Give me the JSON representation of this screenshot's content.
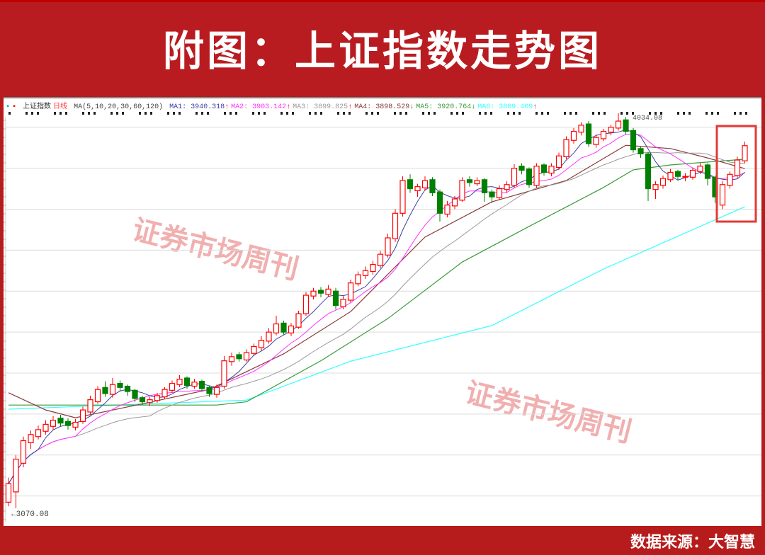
{
  "header": {
    "title": "附图：上证指数走势图"
  },
  "footer": {
    "source": "数据来源：大智慧"
  },
  "watermarks": [
    "证券市场周刊",
    "证券市场周刊"
  ],
  "colors": {
    "background": "#b91c20",
    "up": "#ff0000",
    "down": "#008000",
    "highlight_box": "#e53935"
  },
  "chart_data": {
    "type": "candlestick",
    "title": "",
    "instrument": "上证指数",
    "period": "日线",
    "ma_label": "MA(5,10,20,30,60,120)",
    "legend": [
      {
        "name": "MA1",
        "value": "3940.318",
        "arrow": "↑",
        "color": "#3f3f9f"
      },
      {
        "name": "MA2",
        "value": "3903.142",
        "arrow": "↑",
        "color": "#ff33ff"
      },
      {
        "name": "MA3",
        "value": "3899.825",
        "arrow": "↑",
        "color": "#999999"
      },
      {
        "name": "MA4",
        "value": "3898.529",
        "arrow": "↓",
        "color": "#8b3a3a"
      },
      {
        "name": "MA5",
        "value": "3920.764",
        "arrow": "↓",
        "color": "#3a9a3a"
      },
      {
        "name": "MA6",
        "value": "3809.409",
        "arrow": "↑",
        "color": "#33ffff"
      }
    ],
    "high_label": "4034.08",
    "low_label": "←3070.08",
    "ylim": [
      3070.08,
      4034.08
    ],
    "grid": true,
    "candles_ohlc": [
      [
        3085,
        3145,
        3075,
        3130
      ],
      [
        3110,
        3200,
        3070.08,
        3190
      ],
      [
        3180,
        3245,
        3170,
        3235
      ],
      [
        3230,
        3260,
        3215,
        3250
      ],
      [
        3245,
        3272,
        3238,
        3262
      ],
      [
        3258,
        3285,
        3250,
        3275
      ],
      [
        3270,
        3295,
        3262,
        3285
      ],
      [
        3290,
        3298,
        3270,
        3278
      ],
      [
        3282,
        3290,
        3262,
        3272
      ],
      [
        3268,
        3288,
        3260,
        3280
      ],
      [
        3282,
        3318,
        3276,
        3310
      ],
      [
        3305,
        3345,
        3300,
        3335
      ],
      [
        3330,
        3368,
        3325,
        3360
      ],
      [
        3365,
        3380,
        3342,
        3350
      ],
      [
        3348,
        3388,
        3340,
        3372
      ],
      [
        3375,
        3382,
        3355,
        3365
      ],
      [
        3368,
        3372,
        3345,
        3355
      ],
      [
        3358,
        3362,
        3330,
        3338
      ],
      [
        3340,
        3345,
        3322,
        3330
      ],
      [
        3328,
        3342,
        3320,
        3335
      ],
      [
        3333,
        3352,
        3328,
        3345
      ],
      [
        3342,
        3366,
        3338,
        3360
      ],
      [
        3358,
        3382,
        3352,
        3375
      ],
      [
        3372,
        3395,
        3366,
        3385
      ],
      [
        3388,
        3392,
        3362,
        3370
      ],
      [
        3368,
        3386,
        3362,
        3378
      ],
      [
        3380,
        3384,
        3355,
        3362
      ],
      [
        3365,
        3368,
        3342,
        3350
      ],
      [
        3348,
        3372,
        3340,
        3365
      ],
      [
        3368,
        3442,
        3362,
        3430
      ],
      [
        3428,
        3450,
        3418,
        3440
      ],
      [
        3445,
        3452,
        3428,
        3435
      ],
      [
        3432,
        3458,
        3428,
        3450
      ],
      [
        3448,
        3472,
        3442,
        3465
      ],
      [
        3462,
        3490,
        3455,
        3480
      ],
      [
        3478,
        3510,
        3472,
        3500
      ],
      [
        3498,
        3540,
        3492,
        3520
      ],
      [
        3522,
        3528,
        3494,
        3500
      ],
      [
        3498,
        3522,
        3490,
        3515
      ],
      [
        3512,
        3552,
        3508,
        3545
      ],
      [
        3545,
        3598,
        3540,
        3590
      ],
      [
        3588,
        3608,
        3580,
        3600
      ],
      [
        3602,
        3610,
        3585,
        3595
      ],
      [
        3592,
        3615,
        3586,
        3605
      ],
      [
        3600,
        3608,
        3555,
        3565
      ],
      [
        3562,
        3588,
        3556,
        3580
      ],
      [
        3578,
        3628,
        3572,
        3620
      ],
      [
        3618,
        3648,
        3612,
        3640
      ],
      [
        3638,
        3660,
        3630,
        3650
      ],
      [
        3648,
        3674,
        3640,
        3665
      ],
      [
        3662,
        3698,
        3656,
        3690
      ],
      [
        3688,
        3740,
        3682,
        3730
      ],
      [
        3728,
        3800,
        3720,
        3790
      ],
      [
        3790,
        3880,
        3782,
        3870
      ],
      [
        3872,
        3885,
        3840,
        3850
      ],
      [
        3845,
        3862,
        3830,
        3855
      ],
      [
        3852,
        3880,
        3845,
        3870
      ],
      [
        3872,
        3878,
        3832,
        3840
      ],
      [
        3842,
        3848,
        3770,
        3790
      ],
      [
        3788,
        3820,
        3780,
        3810
      ],
      [
        3808,
        3832,
        3800,
        3825
      ],
      [
        3822,
        3878,
        3818,
        3870
      ],
      [
        3872,
        3880,
        3855,
        3865
      ],
      [
        3862,
        3878,
        3856,
        3870
      ],
      [
        3872,
        3876,
        3818,
        3840
      ],
      [
        3842,
        3848,
        3815,
        3830
      ],
      [
        3828,
        3858,
        3822,
        3850
      ],
      [
        3848,
        3868,
        3840,
        3860
      ],
      [
        3858,
        3910,
        3852,
        3900
      ],
      [
        3905,
        3912,
        3885,
        3895
      ],
      [
        3898,
        3902,
        3852,
        3860
      ],
      [
        3858,
        3912,
        3852,
        3905
      ],
      [
        3908,
        3912,
        3882,
        3890
      ],
      [
        3888,
        3912,
        3880,
        3905
      ],
      [
        3902,
        3938,
        3896,
        3930
      ],
      [
        3928,
        3978,
        3922,
        3970
      ],
      [
        3968,
        3998,
        3960,
        3990
      ],
      [
        3988,
        4012,
        3980,
        4005
      ],
      [
        4008,
        4015,
        3952,
        3960
      ],
      [
        3958,
        3982,
        3950,
        3975
      ],
      [
        3972,
        3996,
        3966,
        3990
      ],
      [
        3988,
        4006,
        3980,
        4000
      ],
      [
        3998,
        4034.08,
        3992,
        4015
      ],
      [
        4018,
        4025,
        3982,
        3990
      ],
      [
        3992,
        3998,
        3938,
        3945
      ],
      [
        3948,
        3952,
        3925,
        3935
      ],
      [
        3935,
        3940,
        3820,
        3850
      ],
      [
        3848,
        3868,
        3825,
        3860
      ],
      [
        3858,
        3882,
        3850,
        3875
      ],
      [
        3872,
        3898,
        3866,
        3890
      ],
      [
        3892,
        3896,
        3870,
        3880
      ],
      [
        3878,
        3888,
        3868,
        3880
      ],
      [
        3878,
        3902,
        3872,
        3895
      ],
      [
        3892,
        3912,
        3886,
        3905
      ],
      [
        3908,
        3912,
        3858,
        3875
      ],
      [
        3878,
        3882,
        3815,
        3830
      ],
      [
        3810,
        3868,
        3800,
        3860
      ],
      [
        3858,
        3892,
        3850,
        3885
      ],
      [
        3882,
        3928,
        3876,
        3920
      ],
      [
        3918,
        3965,
        3912,
        3955
      ]
    ],
    "ma_series_traced": {
      "MA4": [
        [
          0,
          3352
        ],
        [
          5,
          3310
        ],
        [
          9,
          3291
        ],
        [
          18,
          3325
        ],
        [
          27,
          3360
        ],
        [
          37,
          3447
        ],
        [
          46,
          3550
        ],
        [
          56,
          3732
        ],
        [
          65,
          3818
        ],
        [
          75,
          3870
        ],
        [
          83,
          3956
        ],
        [
          89,
          3948
        ],
        [
          94,
          3925
        ],
        [
          99,
          3899
        ]
      ],
      "MA5": [
        [
          0,
          3322
        ],
        [
          28,
          3322
        ],
        [
          32,
          3330
        ],
        [
          42,
          3430
        ],
        [
          51,
          3533
        ],
        [
          61,
          3671
        ],
        [
          70,
          3758
        ],
        [
          80,
          3853
        ],
        [
          84,
          3896
        ],
        [
          89,
          3908
        ],
        [
          99,
          3922
        ]
      ],
      "MA6": [
        [
          0,
          3312
        ],
        [
          32,
          3334
        ],
        [
          46,
          3429
        ],
        [
          65,
          3516
        ],
        [
          80,
          3654
        ],
        [
          99,
          3806
        ]
      ]
    }
  }
}
